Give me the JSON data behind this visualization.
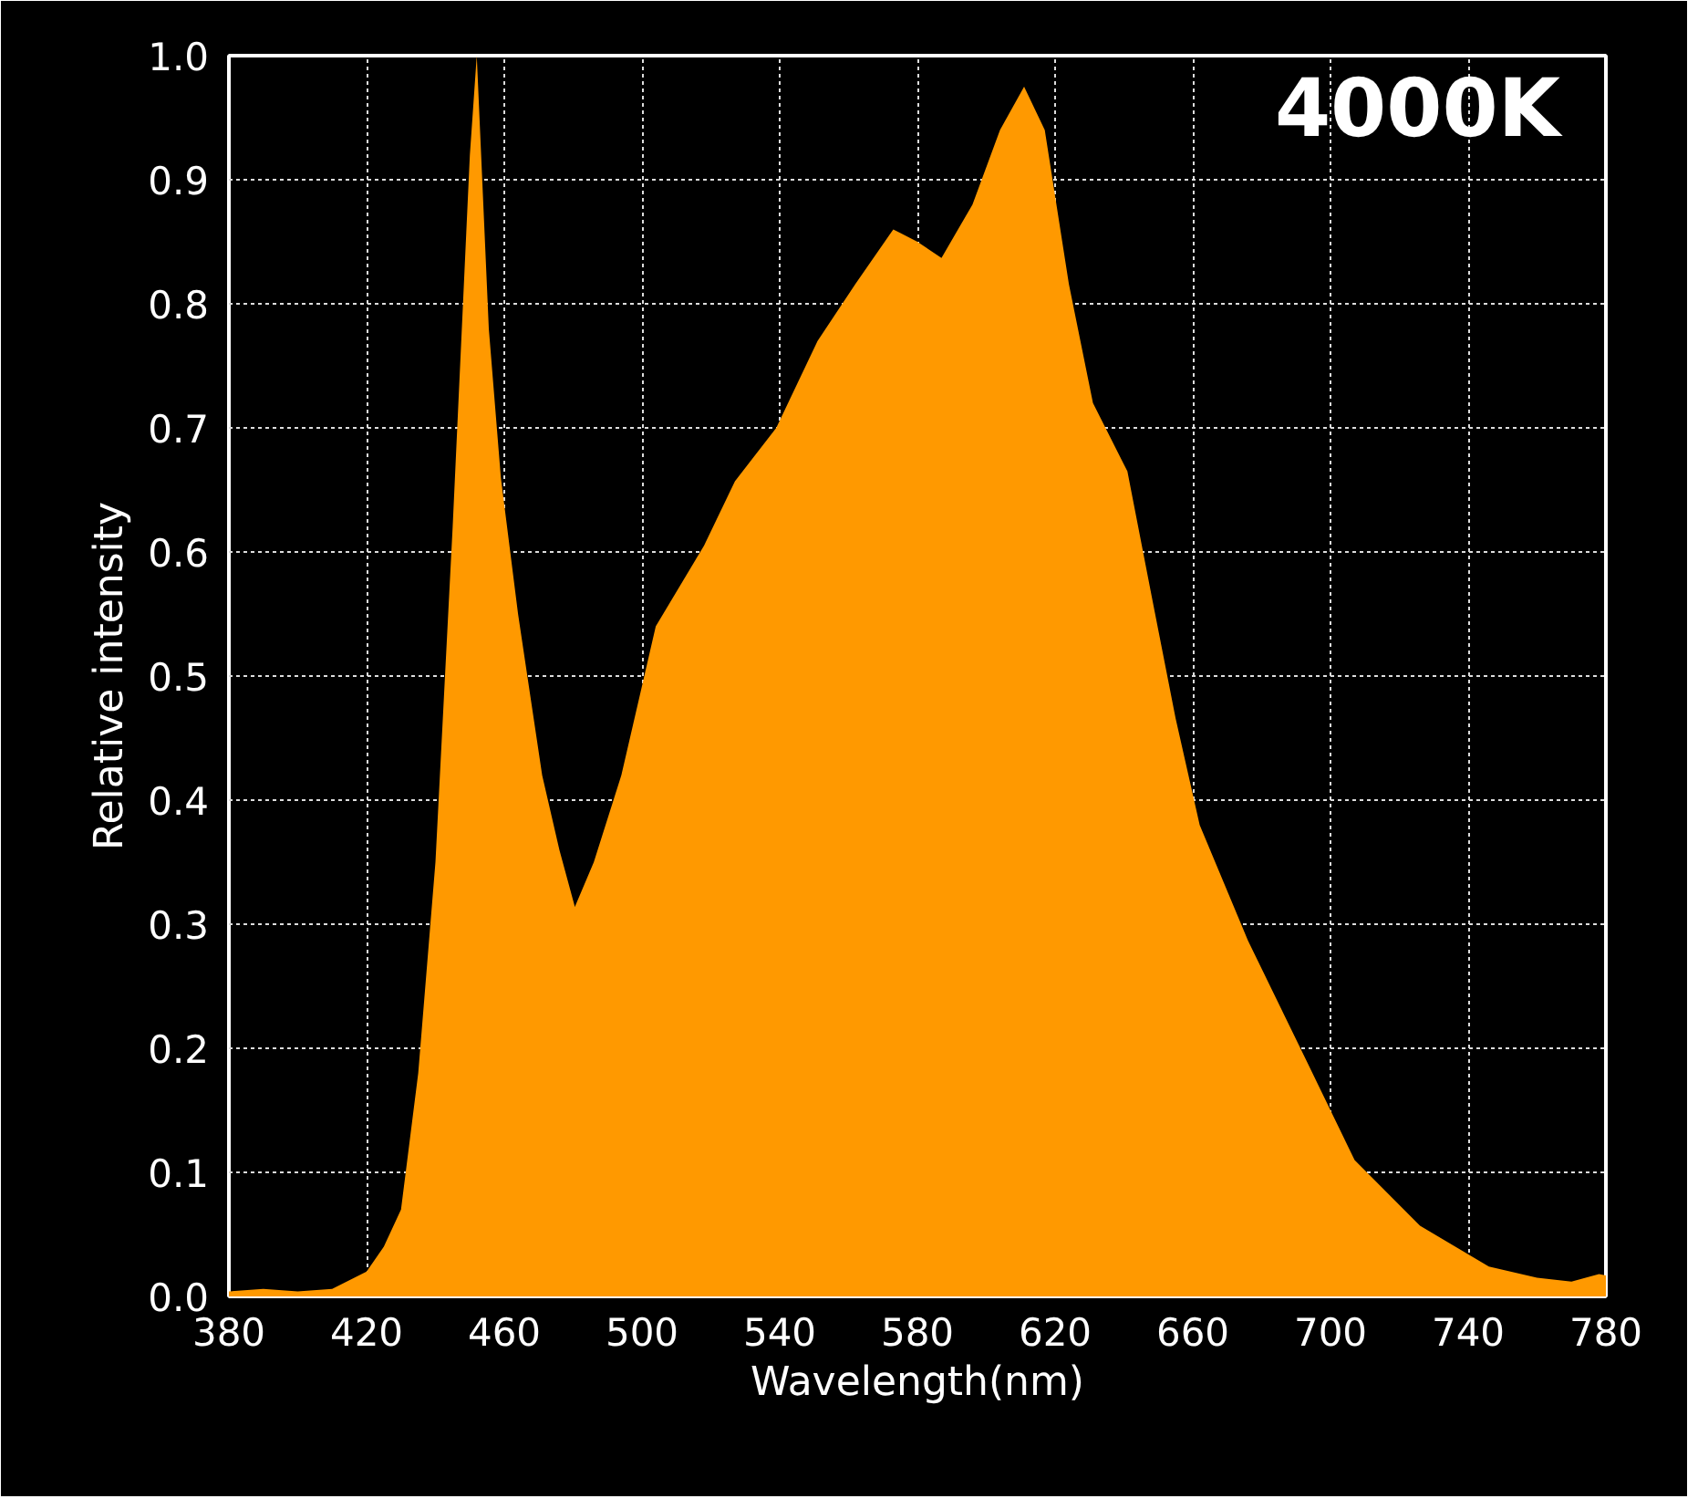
{
  "chart_data": {
    "type": "area",
    "xlabel": "Wavelength(nm)",
    "ylabel": "Relative intensity",
    "annotations": [
      "4000K"
    ],
    "xlim": [
      380,
      780
    ],
    "ylim": [
      0,
      1
    ],
    "xticks": [
      380,
      420,
      460,
      500,
      540,
      580,
      620,
      660,
      700,
      740,
      780
    ],
    "yticks": [
      {
        "value": 0,
        "label": "0.0"
      },
      0.1,
      0.2,
      0.3,
      0.4,
      0.5,
      0.6,
      0.7,
      0.8,
      0.9,
      {
        "value": 1,
        "label": "1.0"
      }
    ],
    "grid": true,
    "series": [
      {
        "color": "#ff9900",
        "x": [
          380,
          390,
          400,
          410,
          420,
          425,
          430,
          435,
          440,
          445,
          450,
          452,
          455.5,
          459,
          464,
          471,
          476,
          480.5,
          486,
          494,
          504,
          518,
          527,
          539,
          551,
          562,
          573,
          580,
          587,
          596,
          604,
          611,
          617,
          624,
          631,
          641,
          648,
          655,
          662,
          676,
          693,
          707,
          726,
          746,
          760,
          770,
          778,
          780
        ],
        "values": [
          0.004,
          0.006,
          0.004,
          0.006,
          0.02,
          0.04,
          0.07,
          0.18,
          0.35,
          0.62,
          0.92,
          1.0,
          0.78,
          0.66,
          0.55,
          0.42,
          0.36,
          0.314,
          0.35,
          0.42,
          0.54,
          0.605,
          0.657,
          0.7,
          0.77,
          0.816,
          0.86,
          0.85,
          0.837,
          0.88,
          0.94,
          0.975,
          0.94,
          0.816,
          0.72,
          0.665,
          0.565,
          0.466,
          0.38,
          0.287,
          0.19,
          0.11,
          0.057,
          0.024,
          0.015,
          0.012,
          0.018,
          0.017
        ]
      }
    ]
  }
}
